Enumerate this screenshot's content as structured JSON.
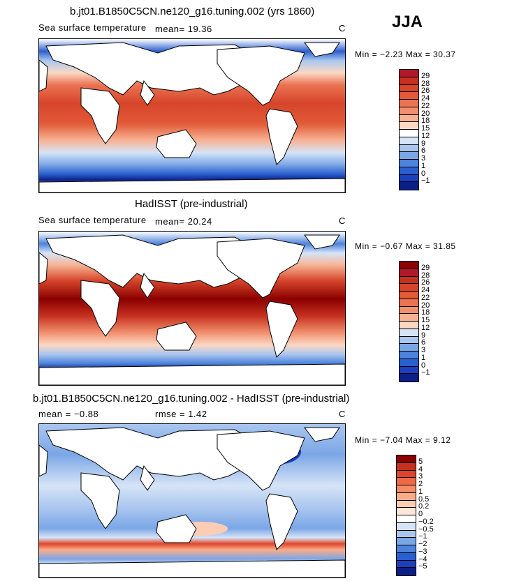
{
  "season": "JJA",
  "panels": [
    {
      "title": "b.jt01.B1850C5CN.ne120_g16.tuning.002 (yrs 1860)",
      "variable": "Sea surface temperature",
      "stat_left": "mean=  19.36",
      "units": "C",
      "minmax": "Min =  −2.23 Max =  30.37",
      "cbar_labels": [
        "29",
        "28",
        "26",
        "24",
        "22",
        "20",
        "18",
        "15",
        "12",
        "9",
        "6",
        "3",
        "1",
        "0",
        "−1"
      ],
      "cbar_colors": [
        "#b2182b",
        "#c6301f",
        "#d6452a",
        "#e25a38",
        "#ea7352",
        "#f1906f",
        "#f7b294",
        "#fbd8c4",
        "#ffffff",
        "#d6e4f7",
        "#a9c6ef",
        "#7ba6e6",
        "#4d83dc",
        "#2b5fd0",
        "#1a3fbf",
        "#0b1f86"
      ]
    },
    {
      "title": "HadISST (pre-industrial)",
      "variable": "Sea surface temperature",
      "stat_left": "mean=  20.24",
      "units": "C",
      "minmax": "Min =  −0.67 Max =  31.85",
      "cbar_labels": [
        "29",
        "28",
        "26",
        "24",
        "22",
        "20",
        "18",
        "15",
        "12",
        "9",
        "6",
        "3",
        "1",
        "0",
        "−1"
      ],
      "cbar_colors": [
        "#8b0000",
        "#b2182b",
        "#c6301f",
        "#d6452a",
        "#e25a38",
        "#ea7352",
        "#f1906f",
        "#f7b294",
        "#fbd8c4",
        "#d6e4f7",
        "#a9c6ef",
        "#7ba6e6",
        "#4d83dc",
        "#2b5fd0",
        "#1a3fbf",
        "#0b1f86"
      ]
    },
    {
      "title": "b.jt01.B1850C5CN.ne120_g16.tuning.002 - HadISST (pre-industrial)",
      "stat_left": "mean =  −0.88",
      "stat_mid": "rmse =   1.42",
      "units": "C",
      "minmax": "Min =  −7.04 Max =   9.12",
      "cbar_labels": [
        "5",
        "4",
        "3",
        "2",
        "1",
        "0.5",
        "0.2",
        "0",
        "−0.2",
        "−0.5",
        "−1",
        "−2",
        "−3",
        "−4",
        "−5"
      ],
      "cbar_colors": [
        "#8b0000",
        "#c6301f",
        "#e0452a",
        "#ee6a45",
        "#f58c66",
        "#f9ac8a",
        "#fccdb5",
        "#fde6da",
        "#ffffff",
        "#d6e4f7",
        "#a9c6ef",
        "#7ba6e6",
        "#4d83dc",
        "#2b5fd0",
        "#1a3fbf",
        "#0b1f86"
      ]
    }
  ]
}
